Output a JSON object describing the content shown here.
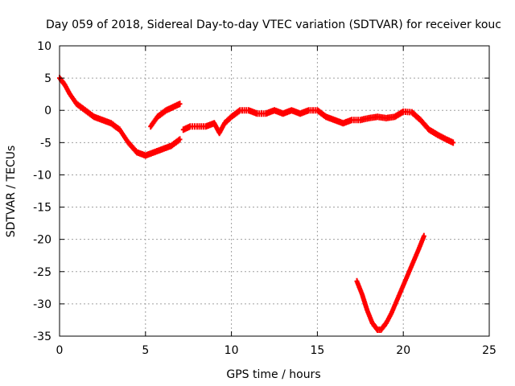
{
  "chart_data": {
    "type": "scatter",
    "title": "Day 059 of 2018, Sidereal Day-to-day VTEC variation (SDTVAR) for receiver kouc",
    "xlabel": "GPS time / hours",
    "ylabel": "SDTVAR / TECUs",
    "xlim": [
      0,
      25
    ],
    "ylim": [
      -35,
      10
    ],
    "xticks": [
      0,
      5,
      10,
      15,
      20,
      25
    ],
    "yticks": [
      10,
      5,
      0,
      -5,
      -10,
      -15,
      -20,
      -25,
      -30,
      -35
    ],
    "xtick_labels": [
      "0",
      "5",
      "10",
      "15",
      "20",
      "25"
    ],
    "ytick_labels": [
      "10",
      "5",
      "0",
      "-5",
      "-10",
      "-15",
      "-20",
      "-25",
      "-30",
      "-35"
    ],
    "grid": true,
    "marker_color": "#ff0000",
    "series": [
      {
        "name": "band-main-1",
        "x": [
          0.0,
          0.3,
          0.6,
          1.0,
          1.5,
          2.0,
          2.5,
          3.0,
          3.5,
          4.0,
          4.5,
          5.0,
          5.5,
          6.0,
          6.5,
          7.0
        ],
        "y": [
          5.0,
          4.0,
          2.5,
          1.0,
          0.0,
          -1.0,
          -1.5,
          -2.0,
          -3.0,
          -5.0,
          -6.5,
          -7.0,
          -6.5,
          -6.0,
          -5.5,
          -4.5
        ]
      },
      {
        "name": "band-rising-short",
        "x": [
          5.3,
          5.7,
          6.2,
          6.6,
          7.0
        ],
        "y": [
          -2.5,
          -1.0,
          0.0,
          0.5,
          1.0
        ]
      },
      {
        "name": "band-main-2",
        "x": [
          7.2,
          7.6,
          8.0,
          8.5,
          9.0,
          9.3,
          9.6,
          10.0,
          10.5,
          11.0,
          11.5,
          12.0,
          12.5,
          13.0,
          13.5,
          14.0,
          14.5,
          15.0,
          15.5,
          16.0,
          16.5,
          17.0,
          17.5,
          18.0,
          18.5,
          19.0,
          19.5,
          20.0,
          20.5,
          21.0,
          21.5,
          22.0,
          22.5,
          22.9
        ],
        "y": [
          -3.0,
          -2.5,
          -2.5,
          -2.5,
          -2.0,
          -3.5,
          -2.0,
          -1.0,
          0.0,
          0.0,
          -0.5,
          -0.5,
          0.0,
          -0.5,
          0.0,
          -0.5,
          0.0,
          0.0,
          -1.0,
          -1.5,
          -2.0,
          -1.5,
          -1.5,
          -1.2,
          -1.0,
          -1.2,
          -1.0,
          -0.2,
          -0.3,
          -1.5,
          -3.0,
          -3.8,
          -4.5,
          -5.0
        ]
      },
      {
        "name": "v-dip",
        "x": [
          17.3,
          17.6,
          17.9,
          18.2,
          18.5,
          18.7,
          19.0,
          19.3,
          19.7,
          20.1,
          20.5,
          20.9,
          21.2
        ],
        "y": [
          -26.5,
          -28.5,
          -31.0,
          -33.0,
          -34.0,
          -34.0,
          -33.0,
          -31.5,
          -29.0,
          -26.5,
          -24.0,
          -21.5,
          -19.5
        ]
      }
    ]
  }
}
